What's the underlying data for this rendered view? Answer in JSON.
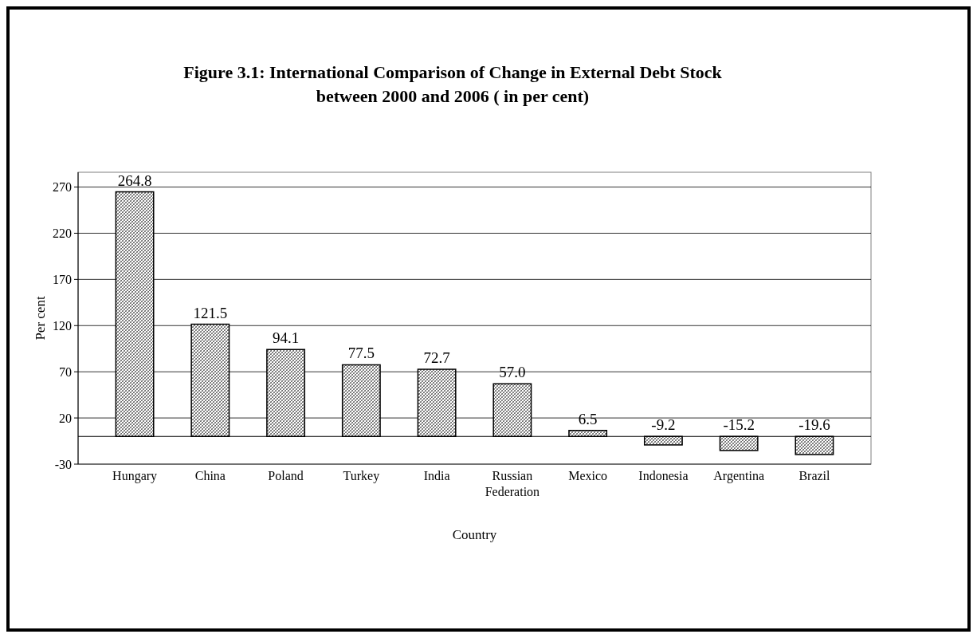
{
  "chart_data": {
    "type": "bar",
    "title": "Figure 3.1: International Comparison of Change in External Debt Stock between 2000 and 2006 ( in per cent)",
    "xlabel": "Country",
    "ylabel": "Per  cent",
    "categories": [
      "Hungary",
      "China",
      "Poland",
      "Turkey",
      "India",
      "Russian Federation",
      "Mexico",
      "Indonesia",
      "Argentina",
      "Brazil"
    ],
    "values": [
      264.8,
      121.5,
      94.1,
      77.5,
      72.7,
      57.0,
      6.5,
      -9.2,
      -15.2,
      -19.6
    ],
    "value_labels": [
      "264.8",
      "121.5",
      "94.1",
      "77.5",
      "72.7",
      "57.0",
      "6.5",
      "-9.2",
      "-15.2",
      "-19.6"
    ],
    "color": "#000000",
    "ylim": [
      -30,
      286
    ],
    "yticks": [
      -30,
      20,
      70,
      120,
      170,
      220,
      270
    ],
    "grid": "y"
  }
}
